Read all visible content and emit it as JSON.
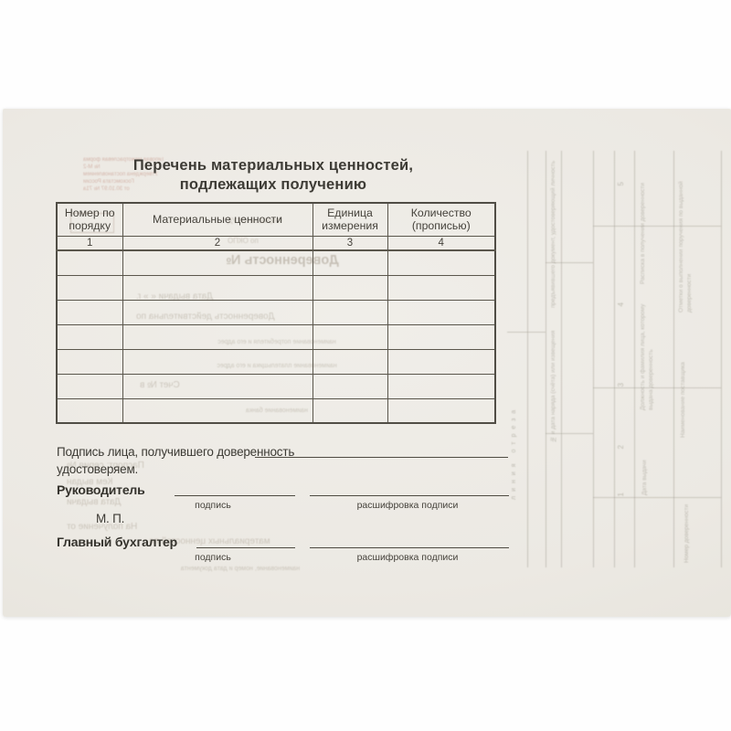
{
  "main": {
    "title_line1": "Перечень материальных ценностей,",
    "title_line2": "подлежащих получению"
  },
  "table": {
    "headers": [
      "Номер по порядку",
      "Материальные ценности",
      "Единица измерения",
      "Количество (прописью)"
    ],
    "column_numbers": [
      "1",
      "2",
      "3",
      "4"
    ],
    "empty_row_count": 7
  },
  "signatures": {
    "receipt_line": "Подпись лица, получившего доверенность",
    "certify_line": "удостоверяем.",
    "director_label": "Руководитель",
    "signature_caption": "подпись",
    "name_caption": "расшифровка подписи",
    "stamp_label": "М. П.",
    "chief_accountant_label": "Главный бухгалтер"
  },
  "bleedthrough": {
    "form_header_lines": [
      "Типовая межотраслевая форма № М-2",
      "Утверждена постановлением Госкомстата России",
      "от 30.10.97 № 71а"
    ],
    "okud_label": "Форма по ОКУД",
    "okpo_label": "по ОКПО",
    "doc_title": "Доверенность №",
    "date_line": "Дата выдачи «      »                                    г.",
    "valid_line": "Доверенность действительна по",
    "consumer_caption": "наименование потребителя и его адрес",
    "payer_caption": "наименование плательщика и его адрес",
    "account_line": "Счет №                          в",
    "bank_caption": "наименование банка",
    "passport_line": "Паспорт: серия                  №",
    "issued_by_line": "Кем выдан",
    "issue_date_line": "Дата выдачи",
    "receive_from_line": "На получение от",
    "values_line": "материальных ценностей по",
    "doc_caption": "наименование, номер и дата документа"
  },
  "spine": {
    "cut_line_label": "линия отреза",
    "texts": [
      "Отметки о выполнении поручения по выданной доверенности",
      "Наименование поставщика",
      "Расписка в получении доверенности",
      "Должность и фамилия лица, которому выдана доверенность",
      "предъявившего документ, удостоверяющий личность",
      "№ и дата наряда (счёта) или извещения",
      "Дата выдачи",
      "Номер доверенности"
    ],
    "numbers": [
      "5",
      "4",
      "3",
      "2",
      "1"
    ]
  },
  "colors": {
    "paper": "#ece9e3",
    "ink": "#3e3c36",
    "showthrough_ink": "#a59e92"
  }
}
